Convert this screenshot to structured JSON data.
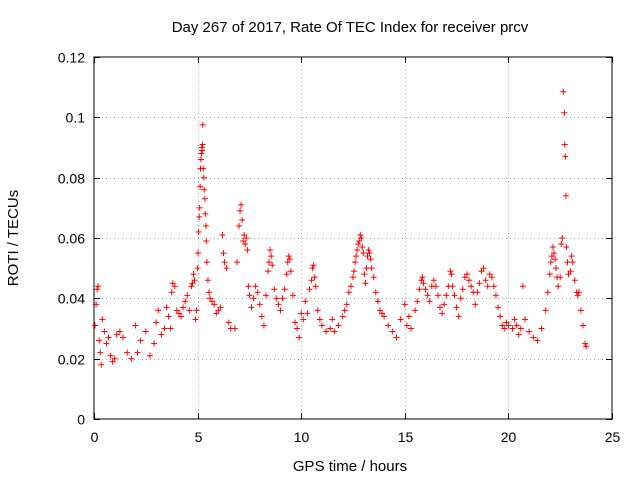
{
  "chart_data": {
    "type": "scatter",
    "title": "Day 267 of 2017, Rate Of TEC Index for receiver prcv",
    "xlabel": "GPS time / hours",
    "ylabel": "ROTI / TECUs",
    "xlim": [
      0,
      25
    ],
    "ylim": [
      0,
      0.12
    ],
    "xticks": [
      0,
      5,
      10,
      15,
      20,
      25
    ],
    "xtick_labels": [
      "0",
      "5",
      "10",
      "15",
      "20",
      "25"
    ],
    "yticks": [
      0,
      0.02,
      0.04,
      0.06,
      0.08,
      0.1,
      0.12
    ],
    "ytick_labels": [
      "0",
      "0.02",
      "0.04",
      "0.06",
      "0.08",
      "0.1",
      "0.12"
    ],
    "grid": true,
    "marker": "+",
    "color": "#ff0000",
    "series": [
      {
        "name": "ROTI",
        "points": [
          [
            0.05,
            0.031
          ],
          [
            0.1,
            0.038
          ],
          [
            0.15,
            0.043
          ],
          [
            0.2,
            0.044
          ],
          [
            0.25,
            0.026
          ],
          [
            0.3,
            0.022
          ],
          [
            0.35,
            0.018
          ],
          [
            0.4,
            0.033
          ],
          [
            0.5,
            0.029
          ],
          [
            0.6,
            0.025
          ],
          [
            0.7,
            0.027
          ],
          [
            0.8,
            0.021
          ],
          [
            0.9,
            0.019
          ],
          [
            1.0,
            0.02
          ],
          [
            1.1,
            0.028
          ],
          [
            1.25,
            0.029
          ],
          [
            1.4,
            0.027
          ],
          [
            1.6,
            0.022
          ],
          [
            1.8,
            0.02
          ],
          [
            2.0,
            0.031
          ],
          [
            2.1,
            0.022
          ],
          [
            2.25,
            0.026
          ],
          [
            2.5,
            0.029
          ],
          [
            2.7,
            0.021
          ],
          [
            2.9,
            0.025
          ],
          [
            3.0,
            0.032
          ],
          [
            3.1,
            0.036
          ],
          [
            3.25,
            0.028
          ],
          [
            3.4,
            0.03
          ],
          [
            3.5,
            0.037
          ],
          [
            3.6,
            0.034
          ],
          [
            3.7,
            0.03
          ],
          [
            3.75,
            0.042
          ],
          [
            3.8,
            0.045
          ],
          [
            3.9,
            0.044
          ],
          [
            4.0,
            0.036
          ],
          [
            4.1,
            0.035
          ],
          [
            4.2,
            0.034
          ],
          [
            4.3,
            0.037
          ],
          [
            4.4,
            0.039
          ],
          [
            4.5,
            0.041
          ],
          [
            4.6,
            0.036
          ],
          [
            4.7,
            0.044
          ],
          [
            4.75,
            0.045
          ],
          [
            4.8,
            0.048
          ],
          [
            4.85,
            0.046
          ],
          [
            4.9,
            0.033
          ],
          [
            4.95,
            0.036
          ],
          [
            5.0,
            0.05
          ],
          [
            5.02,
            0.055
          ],
          [
            5.05,
            0.062
          ],
          [
            5.08,
            0.067
          ],
          [
            5.1,
            0.07
          ],
          [
            5.12,
            0.077
          ],
          [
            5.14,
            0.083
          ],
          [
            5.16,
            0.086
          ],
          [
            5.18,
            0.088
          ],
          [
            5.2,
            0.09
          ],
          [
            5.22,
            0.089
          ],
          [
            5.24,
            0.091
          ],
          [
            5.25,
            0.0975
          ],
          [
            5.27,
            0.083
          ],
          [
            5.3,
            0.08
          ],
          [
            5.32,
            0.076
          ],
          [
            5.35,
            0.073
          ],
          [
            5.37,
            0.068
          ],
          [
            5.4,
            0.064
          ],
          [
            5.42,
            0.059
          ],
          [
            5.45,
            0.052
          ],
          [
            5.5,
            0.046
          ],
          [
            5.55,
            0.042
          ],
          [
            5.6,
            0.04
          ],
          [
            5.7,
            0.039
          ],
          [
            5.8,
            0.038
          ],
          [
            5.9,
            0.035
          ],
          [
            6.0,
            0.036
          ],
          [
            6.1,
            0.037
          ],
          [
            6.2,
            0.061
          ],
          [
            6.25,
            0.055
          ],
          [
            6.3,
            0.052
          ],
          [
            6.4,
            0.05
          ],
          [
            6.5,
            0.032
          ],
          [
            6.6,
            0.03
          ],
          [
            6.8,
            0.03
          ],
          [
            6.9,
            0.052
          ],
          [
            7.0,
            0.064
          ],
          [
            7.05,
            0.069
          ],
          [
            7.1,
            0.071
          ],
          [
            7.15,
            0.066
          ],
          [
            7.2,
            0.059
          ],
          [
            7.25,
            0.061
          ],
          [
            7.3,
            0.058
          ],
          [
            7.35,
            0.06
          ],
          [
            7.4,
            0.056
          ],
          [
            7.45,
            0.044
          ],
          [
            7.5,
            0.041
          ],
          [
            7.6,
            0.037
          ],
          [
            7.7,
            0.04
          ],
          [
            7.8,
            0.044
          ],
          [
            7.9,
            0.042
          ],
          [
            8.0,
            0.038
          ],
          [
            8.1,
            0.034
          ],
          [
            8.2,
            0.031
          ],
          [
            8.3,
            0.041
          ],
          [
            8.4,
            0.049
          ],
          [
            8.45,
            0.052
          ],
          [
            8.5,
            0.056
          ],
          [
            8.55,
            0.054
          ],
          [
            8.6,
            0.051
          ],
          [
            8.7,
            0.043
          ],
          [
            8.8,
            0.04
          ],
          [
            8.9,
            0.038
          ],
          [
            9.0,
            0.036
          ],
          [
            9.1,
            0.04
          ],
          [
            9.2,
            0.043
          ],
          [
            9.3,
            0.048
          ],
          [
            9.35,
            0.052
          ],
          [
            9.4,
            0.054
          ],
          [
            9.45,
            0.053
          ],
          [
            9.5,
            0.049
          ],
          [
            9.6,
            0.041
          ],
          [
            9.7,
            0.032
          ],
          [
            9.8,
            0.03
          ],
          [
            9.9,
            0.027
          ],
          [
            10.0,
            0.035
          ],
          [
            10.1,
            0.033
          ],
          [
            10.2,
            0.039
          ],
          [
            10.3,
            0.035
          ],
          [
            10.4,
            0.043
          ],
          [
            10.5,
            0.046
          ],
          [
            10.55,
            0.05
          ],
          [
            10.6,
            0.051
          ],
          [
            10.65,
            0.047
          ],
          [
            10.7,
            0.044
          ],
          [
            10.8,
            0.036
          ],
          [
            10.9,
            0.033
          ],
          [
            11.0,
            0.031
          ],
          [
            11.2,
            0.029
          ],
          [
            11.4,
            0.03
          ],
          [
            11.5,
            0.033
          ],
          [
            11.6,
            0.029
          ],
          [
            11.8,
            0.031
          ],
          [
            12.0,
            0.034
          ],
          [
            12.1,
            0.036
          ],
          [
            12.2,
            0.038
          ],
          [
            12.3,
            0.042
          ],
          [
            12.4,
            0.044
          ],
          [
            12.5,
            0.047
          ],
          [
            12.55,
            0.049
          ],
          [
            12.6,
            0.052
          ],
          [
            12.65,
            0.054
          ],
          [
            12.7,
            0.056
          ],
          [
            12.75,
            0.058
          ],
          [
            12.8,
            0.059
          ],
          [
            12.85,
            0.061
          ],
          [
            12.9,
            0.06
          ],
          [
            12.95,
            0.057
          ],
          [
            13.0,
            0.055
          ],
          [
            13.05,
            0.048
          ],
          [
            13.1,
            0.045
          ],
          [
            13.15,
            0.05
          ],
          [
            13.2,
            0.054
          ],
          [
            13.25,
            0.056
          ],
          [
            13.3,
            0.055
          ],
          [
            13.35,
            0.053
          ],
          [
            13.4,
            0.05
          ],
          [
            13.5,
            0.047
          ],
          [
            13.6,
            0.042
          ],
          [
            13.7,
            0.039
          ],
          [
            13.8,
            0.036
          ],
          [
            13.9,
            0.035
          ],
          [
            14.0,
            0.034
          ],
          [
            14.2,
            0.031
          ],
          [
            14.4,
            0.029
          ],
          [
            14.6,
            0.027
          ],
          [
            14.8,
            0.033
          ],
          [
            15.0,
            0.038
          ],
          [
            15.1,
            0.031
          ],
          [
            15.2,
            0.034
          ],
          [
            15.3,
            0.03
          ],
          [
            15.5,
            0.036
          ],
          [
            15.6,
            0.039
          ],
          [
            15.7,
            0.043
          ],
          [
            15.8,
            0.046
          ],
          [
            15.85,
            0.047
          ],
          [
            15.9,
            0.045
          ],
          [
            16.0,
            0.043
          ],
          [
            16.1,
            0.041
          ],
          [
            16.2,
            0.039
          ],
          [
            16.3,
            0.044
          ],
          [
            16.4,
            0.046
          ],
          [
            16.5,
            0.044
          ],
          [
            16.6,
            0.041
          ],
          [
            16.7,
            0.037
          ],
          [
            16.8,
            0.035
          ],
          [
            16.9,
            0.038
          ],
          [
            17.0,
            0.041
          ],
          [
            17.1,
            0.044
          ],
          [
            17.2,
            0.049
          ],
          [
            17.25,
            0.048
          ],
          [
            17.3,
            0.044
          ],
          [
            17.4,
            0.041
          ],
          [
            17.5,
            0.037
          ],
          [
            17.6,
            0.034
          ],
          [
            17.7,
            0.04
          ],
          [
            17.8,
            0.043
          ],
          [
            17.9,
            0.047
          ],
          [
            18.0,
            0.048
          ],
          [
            18.1,
            0.046
          ],
          [
            18.2,
            0.044
          ],
          [
            18.3,
            0.042
          ],
          [
            18.4,
            0.038
          ],
          [
            18.5,
            0.042
          ],
          [
            18.6,
            0.045
          ],
          [
            18.7,
            0.049
          ],
          [
            18.8,
            0.05
          ],
          [
            18.9,
            0.046
          ],
          [
            19.0,
            0.044
          ],
          [
            19.1,
            0.048
          ],
          [
            19.2,
            0.047
          ],
          [
            19.3,
            0.044
          ],
          [
            19.4,
            0.041
          ],
          [
            19.5,
            0.037
          ],
          [
            19.6,
            0.034
          ],
          [
            19.7,
            0.031
          ],
          [
            19.8,
            0.03
          ],
          [
            19.9,
            0.032
          ],
          [
            20.0,
            0.031
          ],
          [
            20.2,
            0.03
          ],
          [
            20.3,
            0.033
          ],
          [
            20.4,
            0.031
          ],
          [
            20.5,
            0.028
          ],
          [
            20.6,
            0.03
          ],
          [
            20.7,
            0.044
          ],
          [
            20.8,
            0.033
          ],
          [
            21.0,
            0.029
          ],
          [
            21.2,
            0.027
          ],
          [
            21.4,
            0.026
          ],
          [
            21.6,
            0.03
          ],
          [
            21.8,
            0.036
          ],
          [
            21.9,
            0.042
          ],
          [
            22.0,
            0.048
          ],
          [
            22.05,
            0.052
          ],
          [
            22.1,
            0.054
          ],
          [
            22.15,
            0.057
          ],
          [
            22.2,
            0.055
          ],
          [
            22.25,
            0.053
          ],
          [
            22.3,
            0.05
          ],
          [
            22.35,
            0.047
          ],
          [
            22.4,
            0.044
          ],
          [
            22.5,
            0.047
          ],
          [
            22.55,
            0.058
          ],
          [
            22.6,
            0.06
          ],
          [
            22.65,
            0.1085
          ],
          [
            22.7,
            0.1015
          ],
          [
            22.72,
            0.091
          ],
          [
            22.75,
            0.087
          ],
          [
            22.78,
            0.074
          ],
          [
            22.8,
            0.057
          ],
          [
            22.85,
            0.052
          ],
          [
            22.9,
            0.048
          ],
          [
            23.0,
            0.049
          ],
          [
            23.05,
            0.054
          ],
          [
            23.1,
            0.052
          ],
          [
            23.2,
            0.046
          ],
          [
            23.3,
            0.042
          ],
          [
            23.35,
            0.041
          ],
          [
            23.4,
            0.042
          ],
          [
            23.5,
            0.036
          ],
          [
            23.6,
            0.031
          ],
          [
            23.7,
            0.025
          ],
          [
            23.75,
            0.024
          ]
        ]
      }
    ]
  }
}
